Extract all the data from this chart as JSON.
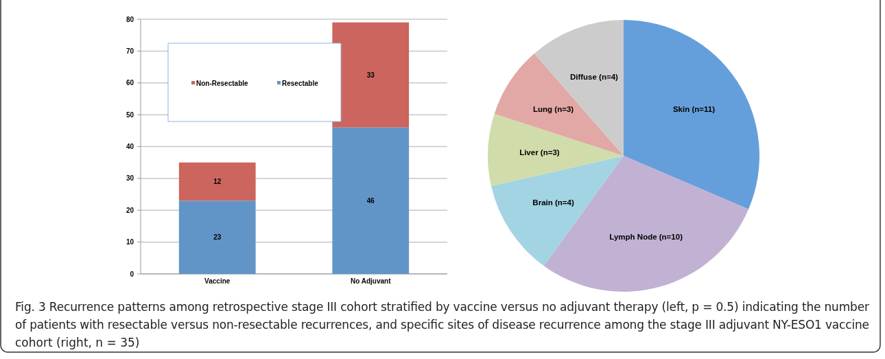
{
  "chart_data": [
    {
      "type": "bar",
      "categories": [
        "Vaccine",
        "No Adjuvant"
      ],
      "stacked": true,
      "series": [
        {
          "name": "Resectable",
          "color": "#6195c8",
          "values": [
            23,
            46
          ]
        },
        {
          "name": "Non-Resectable",
          "color": "#cc655d",
          "values": [
            12,
            33
          ]
        }
      ],
      "ylim": [
        0,
        80
      ],
      "yticks": [
        0,
        10,
        20,
        30,
        40,
        50,
        60,
        70,
        80
      ],
      "grid": "y",
      "legend": "top left",
      "data_labels": true,
      "annotations": [
        "Fig. 3 Recurrence patterns among retrospective stage III cohort stratified by vaccine versus no adjuvant therapy (left, p = 0.5) indicating the number of patients with resectable versus non-resectable recurrences, and specific sites of disease recurrence among the stage III adjuvant NY-ESO1 vaccine cohort (right, n = 35)"
      ]
    },
    {
      "type": "pie",
      "categories": [
        "Skin (n=11)",
        "Lymph Node (n=10)",
        "Brain (n=4)",
        "Liver (n=3)",
        "Lung (n=3)",
        "Diffuse (n=4)"
      ],
      "values": [
        11,
        10,
        4,
        3,
        3,
        4
      ],
      "colors": [
        "#659fdb",
        "#c1b1d3",
        "#a2d4e3",
        "#d1dcab",
        "#e2a8a5",
        "#cccccc"
      ]
    }
  ]
}
